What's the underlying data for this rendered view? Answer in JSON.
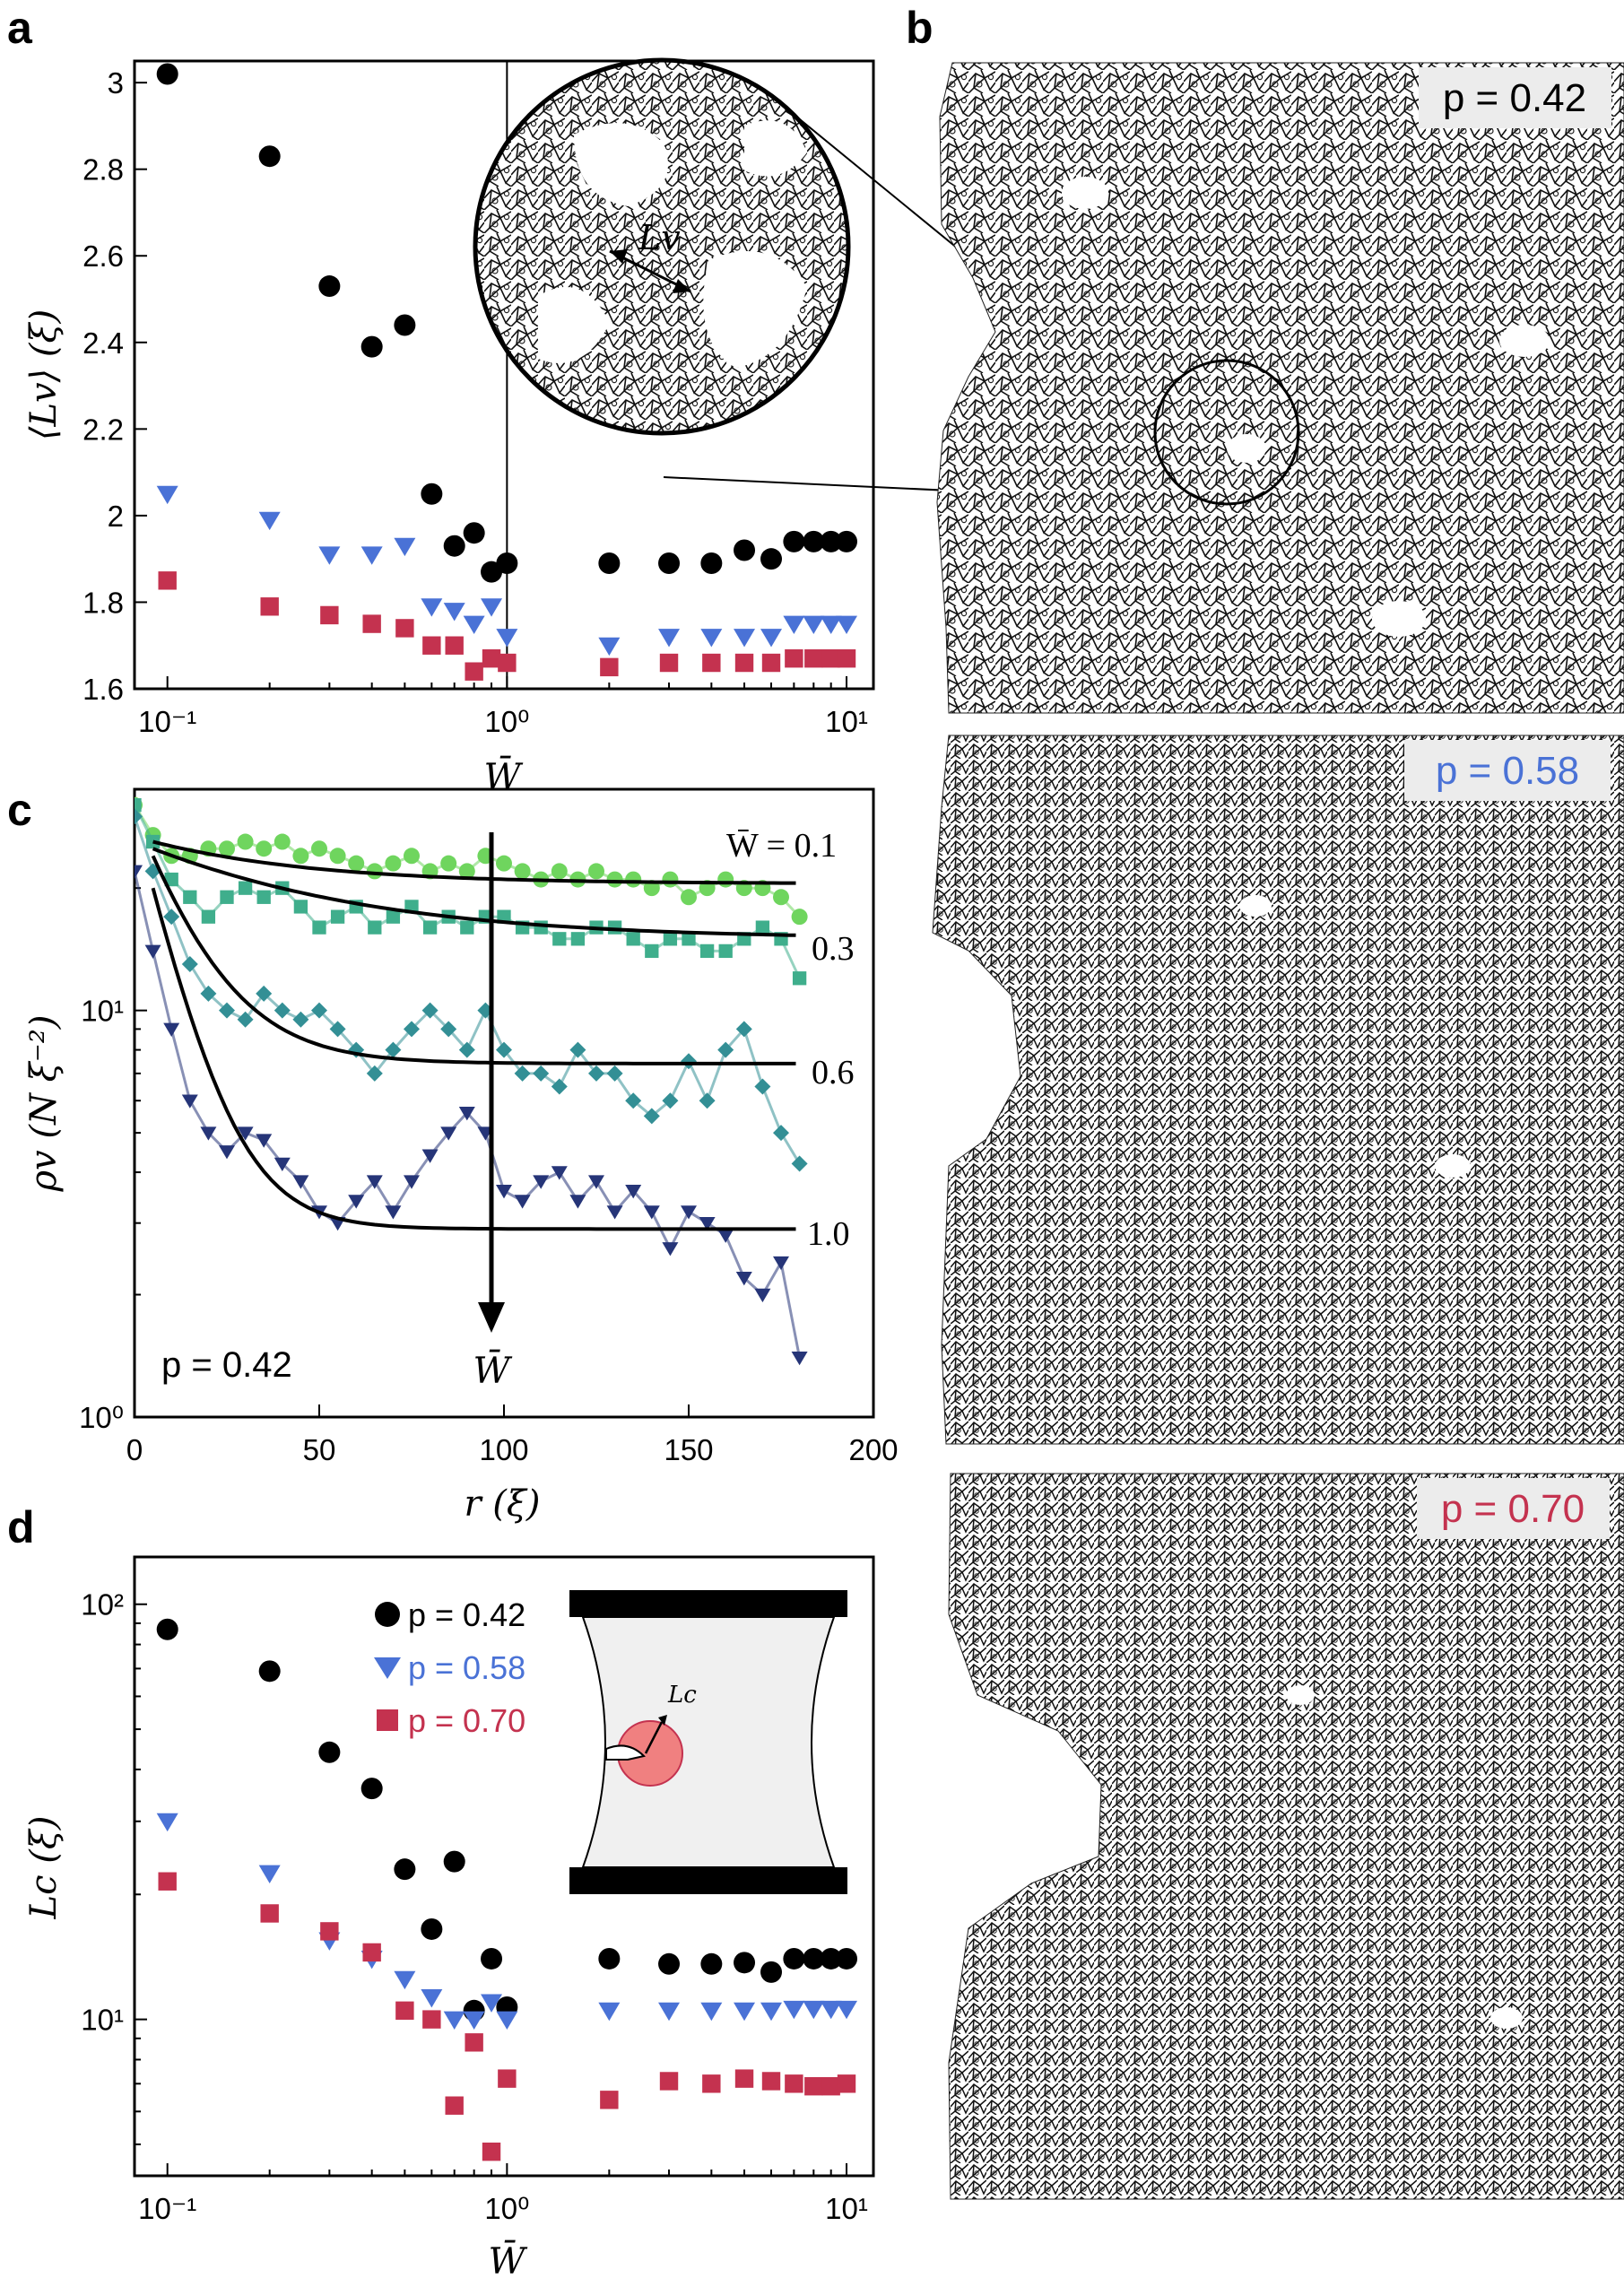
{
  "colors": {
    "p042": "#000000",
    "p058": "#4a72d6",
    "p070": "#c4324f",
    "c01": "#6fd55e",
    "c03": "#3fae8c",
    "c06": "#338f95",
    "c10": "#263578"
  },
  "panel_letters": {
    "a": "a",
    "b": "b",
    "c": "c",
    "d": "d"
  },
  "panel_a": {
    "ylabel": "⟨Lv⟩ (ξ)",
    "xlabel": "W̄",
    "x_ticks": [
      "10⁻¹",
      "10⁰",
      "10¹"
    ],
    "y_ticks": [
      "1.6",
      "1.8",
      "2",
      "2.2",
      "2.4",
      "2.6",
      "2.8",
      "3"
    ],
    "inset_label": "Lv"
  },
  "panel_b": {
    "labels": [
      "p = 0.42",
      "p = 0.58",
      "p = 0.70"
    ]
  },
  "panel_c": {
    "ylabel": "ρv (N ξ⁻²)",
    "xlabel": "r (ξ)",
    "x_ticks": [
      "0",
      "50",
      "100",
      "150",
      "200"
    ],
    "y_ticks": [
      "10⁰",
      "10¹"
    ],
    "p_label": "p = 0.42",
    "curve_labels": [
      "W̄ = 0.1",
      "0.3",
      "0.6",
      "1.0"
    ],
    "arrow_label": "W̄"
  },
  "panel_d": {
    "ylabel": "Lc (ξ)",
    "xlabel": "W̄",
    "x_ticks": [
      "10⁻¹",
      "10⁰",
      "10¹"
    ],
    "y_ticks": [
      "10¹",
      "10²"
    ],
    "legend": [
      "p = 0.42",
      "p = 0.58",
      "p = 0.70"
    ],
    "inset_label": "Lc"
  },
  "chart_data": [
    {
      "panel": "a",
      "type": "scatter",
      "xlabel": "W̄",
      "ylabel": "⟨Lv⟩ (ξ)",
      "xscale": "log",
      "xlim": [
        0.08,
        12
      ],
      "ylim": [
        1.6,
        3.05
      ],
      "vertical_line_x": 1,
      "series": [
        {
          "marker": "circle",
          "x": [
            0.1,
            0.2,
            0.3,
            0.4,
            0.5,
            0.6,
            0.7,
            0.8,
            0.9,
            1.0,
            2,
            3,
            4,
            5,
            6,
            7,
            8,
            9,
            10
          ],
          "y": [
            3.02,
            2.83,
            2.53,
            2.39,
            2.44,
            2.05,
            1.93,
            1.96,
            1.87,
            1.89,
            1.89,
            1.89,
            1.89,
            1.92,
            1.9,
            1.94,
            1.94,
            1.94,
            1.94
          ]
        },
        {
          "marker": "triangle",
          "x": [
            0.1,
            0.2,
            0.3,
            0.4,
            0.5,
            0.6,
            0.7,
            0.8,
            0.9,
            1.0,
            2,
            3,
            4,
            5,
            6,
            7,
            8,
            9,
            10
          ],
          "y": [
            2.05,
            1.99,
            1.91,
            1.91,
            1.93,
            1.79,
            1.78,
            1.75,
            1.79,
            1.72,
            1.7,
            1.72,
            1.72,
            1.72,
            1.72,
            1.75,
            1.75,
            1.75,
            1.75
          ]
        },
        {
          "marker": "square",
          "x": [
            0.1,
            0.2,
            0.3,
            0.4,
            0.5,
            0.6,
            0.7,
            0.8,
            0.9,
            1.0,
            2,
            3,
            4,
            5,
            6,
            7,
            8,
            9,
            10
          ],
          "y": [
            1.85,
            1.79,
            1.77,
            1.75,
            1.74,
            1.7,
            1.7,
            1.64,
            1.67,
            1.66,
            1.65,
            1.66,
            1.66,
            1.66,
            1.66,
            1.67,
            1.67,
            1.67,
            1.67
          ]
        }
      ]
    },
    {
      "panel": "c",
      "type": "line",
      "xlabel": "r (ξ)",
      "ylabel": "ρv (N ξ⁻²)",
      "yscale": "log",
      "xlim": [
        0,
        200
      ],
      "ylim": [
        1,
        35
      ],
      "series": [
        {
          "label": "W̄ = 0.1",
          "marker": "circle",
          "fit": [
            26,
            20.5,
            40
          ],
          "x": [
            0,
            5,
            10,
            15,
            20,
            25,
            30,
            35,
            40,
            45,
            50,
            55,
            60,
            65,
            70,
            75,
            80,
            85,
            90,
            95,
            100,
            105,
            110,
            115,
            120,
            125,
            130,
            135,
            140,
            145,
            150,
            155,
            160,
            165,
            170,
            175,
            180
          ],
          "y": [
            32,
            27,
            24,
            24,
            25,
            25,
            26,
            25,
            26,
            24,
            25,
            24,
            23,
            22,
            23,
            24,
            22,
            23,
            22,
            24,
            23,
            22,
            21,
            22,
            21,
            22,
            21,
            21,
            20,
            21,
            19,
            20,
            21,
            20,
            20,
            19,
            17
          ]
        },
        {
          "label": "0.3",
          "marker": "square",
          "fit": [
            25,
            15,
            50
          ],
          "x": [
            0,
            5,
            10,
            15,
            20,
            25,
            30,
            35,
            40,
            45,
            50,
            55,
            60,
            65,
            70,
            75,
            80,
            85,
            90,
            95,
            100,
            105,
            110,
            115,
            120,
            125,
            130,
            135,
            140,
            145,
            150,
            155,
            160,
            165,
            170,
            175,
            180
          ],
          "y": [
            32,
            26,
            21,
            19,
            17,
            19,
            20,
            19,
            20,
            18,
            16,
            17,
            18,
            16,
            17,
            18,
            16,
            17,
            16,
            17,
            17,
            16,
            16,
            15,
            15,
            16,
            16,
            15,
            14,
            15,
            15,
            14,
            14,
            15,
            16,
            15,
            12
          ]
        },
        {
          "label": "0.6",
          "marker": "diamond",
          "fit": [
            24,
            7.4,
            15
          ],
          "x": [
            0,
            5,
            10,
            15,
            20,
            25,
            30,
            35,
            40,
            45,
            50,
            55,
            60,
            65,
            70,
            75,
            80,
            85,
            90,
            95,
            100,
            105,
            110,
            115,
            120,
            125,
            130,
            135,
            140,
            145,
            150,
            155,
            160,
            165,
            170,
            175,
            180
          ],
          "y": [
            30,
            22,
            17,
            13,
            11,
            10,
            9.5,
            11,
            10,
            9.5,
            10,
            9,
            8,
            7,
            8,
            9,
            10,
            9,
            8,
            10,
            8,
            7,
            7,
            6.5,
            8,
            7,
            7,
            6,
            5.5,
            6,
            7.5,
            6,
            8,
            9,
            6.5,
            5,
            4.2
          ]
        },
        {
          "label": "1.0",
          "marker": "triangle",
          "fit": [
            20,
            2.9,
            11
          ],
          "x": [
            0,
            5,
            10,
            15,
            20,
            25,
            30,
            35,
            40,
            45,
            50,
            55,
            60,
            65,
            70,
            75,
            80,
            85,
            90,
            95,
            100,
            105,
            110,
            115,
            120,
            125,
            130,
            135,
            140,
            145,
            150,
            155,
            160,
            165,
            170,
            175,
            180
          ],
          "y": [
            22,
            14,
            9,
            6,
            5,
            4.5,
            5,
            4.8,
            4.2,
            3.8,
            3.2,
            3,
            3.4,
            3.8,
            3.2,
            3.8,
            4.4,
            5,
            5.6,
            5,
            3.6,
            3.4,
            3.8,
            4,
            3.4,
            3.8,
            3.2,
            3.6,
            3.2,
            2.6,
            3.2,
            3,
            2.8,
            2.2,
            2,
            2.4,
            1.4
          ]
        }
      ]
    },
    {
      "panel": "d",
      "type": "scatter",
      "xlabel": "W̄",
      "ylabel": "Lc (ξ)",
      "xscale": "log",
      "yscale": "log",
      "xlim": [
        0.08,
        12
      ],
      "ylim": [
        4.2,
        130
      ],
      "series": [
        {
          "name": "p = 0.42",
          "marker": "circle",
          "x": [
            0.1,
            0.2,
            0.3,
            0.4,
            0.5,
            0.6,
            0.7,
            0.8,
            0.9,
            1.0,
            2,
            3,
            4,
            5,
            6,
            7,
            8,
            9,
            10
          ],
          "y": [
            87,
            69,
            44,
            36,
            23,
            16.5,
            24,
            10.5,
            14,
            10.7,
            14,
            13.6,
            13.6,
            13.7,
            13,
            14,
            14,
            14,
            14
          ]
        },
        {
          "name": "p = 0.58",
          "marker": "triangle",
          "x": [
            0.1,
            0.2,
            0.3,
            0.4,
            0.5,
            0.6,
            0.7,
            0.8,
            0.9,
            1.0,
            2,
            3,
            4,
            5,
            6,
            7,
            8,
            9,
            10
          ],
          "y": [
            30,
            22.5,
            15.5,
            14,
            12.5,
            11.3,
            10,
            10,
            11,
            10,
            10.5,
            10.5,
            10.5,
            10.5,
            10.5,
            10.6,
            10.6,
            10.6,
            10.6
          ]
        },
        {
          "name": "p = 0.70",
          "marker": "square",
          "x": [
            0.1,
            0.2,
            0.3,
            0.4,
            0.5,
            0.6,
            0.7,
            0.8,
            0.9,
            1.0,
            2,
            3,
            4,
            5,
            6,
            7,
            8,
            9,
            10
          ],
          "y": [
            21.5,
            18,
            16.3,
            14.5,
            10.5,
            10,
            6.2,
            8.8,
            4.8,
            7.2,
            6.4,
            7.1,
            7,
            7.2,
            7.1,
            7,
            6.9,
            6.9,
            7
          ]
        }
      ]
    }
  ]
}
